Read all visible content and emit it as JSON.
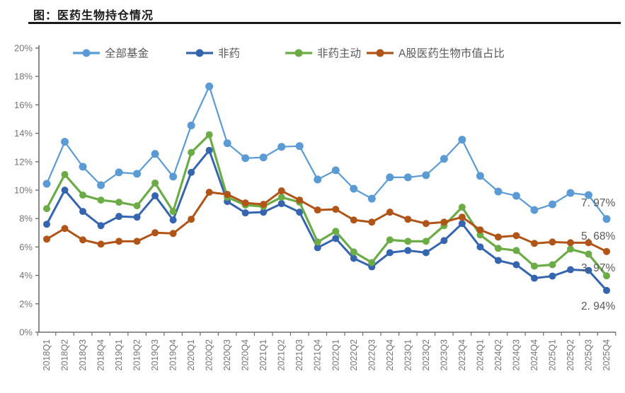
{
  "header": {
    "title": "图：医药生物持仓情况"
  },
  "chart_data": {
    "type": "line",
    "title": "图：医药生物持仓情况",
    "categories": [
      "2018Q1",
      "2018Q2",
      "2018Q3",
      "2018Q4",
      "2019Q1",
      "2019Q2",
      "2019Q3",
      "2019Q4",
      "2020Q1",
      "2020Q2",
      "2020Q3",
      "2020Q4",
      "2021Q1",
      "2021Q2",
      "2021Q3",
      "2021Q4",
      "2022Q1",
      "2022Q2",
      "2022Q3",
      "2022Q4",
      "2023Q1",
      "2023Q2",
      "2023Q3",
      "2023Q4",
      "2024Q1",
      "2024Q2",
      "2024Q3",
      "2024Q4",
      "2025Q1",
      "2025Q2",
      "2025Q3",
      "2025Q4"
    ],
    "series": [
      {
        "name": "全部基金",
        "color": "#5B9BD5",
        "marker_r": 5.5,
        "line_w": 2.2,
        "values": [
          10.45,
          13.4,
          11.65,
          10.35,
          11.25,
          11.15,
          12.55,
          10.95,
          14.55,
          17.3,
          13.3,
          12.25,
          12.3,
          13.05,
          13.1,
          10.75,
          11.4,
          10.1,
          9.4,
          10.9,
          10.9,
          11.05,
          12.2,
          13.55,
          11.0,
          9.9,
          9.6,
          8.6,
          9.0,
          9.8,
          9.65,
          7.97
        ]
      },
      {
        "name": "非药",
        "color": "#3565AF",
        "marker_r": 5.0,
        "line_w": 3.0,
        "values": [
          7.6,
          10.0,
          8.5,
          7.5,
          8.15,
          8.1,
          9.6,
          7.9,
          11.25,
          12.8,
          9.2,
          8.4,
          8.45,
          9.05,
          8.45,
          5.95,
          6.6,
          5.2,
          4.6,
          5.6,
          5.75,
          5.6,
          6.45,
          7.65,
          6.0,
          5.05,
          4.75,
          3.8,
          3.95,
          4.4,
          4.35,
          2.94
        ]
      },
      {
        "name": "非药主动",
        "color": "#6BAC46",
        "marker_r": 5.0,
        "line_w": 3.2,
        "values": [
          8.7,
          11.1,
          9.65,
          9.3,
          9.15,
          8.9,
          10.5,
          8.5,
          12.65,
          13.9,
          9.5,
          8.95,
          8.85,
          9.5,
          9.15,
          6.35,
          7.1,
          5.65,
          4.9,
          6.5,
          6.4,
          6.4,
          7.5,
          8.8,
          6.85,
          5.9,
          5.75,
          4.65,
          4.75,
          5.85,
          5.5,
          3.97
        ]
      },
      {
        "name": "A股医药生物市值占比",
        "color": "#B05417",
        "marker_r": 5.0,
        "line_w": 3.0,
        "values": [
          6.55,
          7.3,
          6.5,
          6.2,
          6.4,
          6.4,
          7.0,
          6.95,
          7.95,
          9.85,
          9.7,
          9.1,
          9.0,
          9.95,
          9.3,
          8.6,
          8.65,
          7.9,
          7.75,
          8.45,
          7.95,
          7.65,
          7.75,
          8.1,
          7.2,
          6.7,
          6.8,
          6.25,
          6.35,
          6.3,
          6.3,
          5.68
        ]
      }
    ],
    "ylim": [
      0,
      20
    ],
    "ytick_step": 2,
    "ytick_suffix": "%",
    "grid": false,
    "legend_position": "top",
    "end_labels": [
      {
        "text": "7. 97%",
        "series": "全部基金"
      },
      {
        "text": "5. 68%",
        "series": "A股医药生物市值占比"
      },
      {
        "text": "3. 97%",
        "series": "非药主动"
      },
      {
        "text": "2. 94%",
        "series": "非药"
      }
    ]
  },
  "colors": {
    "axis": "#6E6E6E",
    "tick_label": "#757575",
    "legend_text": "#595959",
    "end_label": "#595959",
    "title": "#1a1a1a"
  }
}
